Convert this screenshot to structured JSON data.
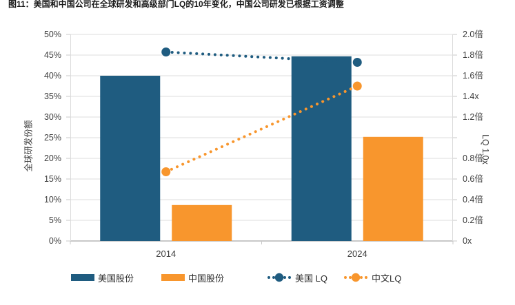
{
  "title": "图11：美国和中国公司在全球研发和高级部门LQ的10年变化，中国公司研发已根据工资调整",
  "colors": {
    "us": "#1f5c80",
    "cn": "#f8962d",
    "grid": "#dcdcdc",
    "axis": "#c8c8c8",
    "text": "#3d3d3d"
  },
  "chart_data": {
    "type": "combo-bar-line-dual-axis",
    "categories": [
      "2014",
      "2024"
    ],
    "series": [
      {
        "name": "美国股份",
        "type": "bar",
        "axis": "left",
        "values": [
          40,
          44.7
        ],
        "color_key": "us"
      },
      {
        "name": "中国股份",
        "type": "bar",
        "axis": "left",
        "values": [
          8.7,
          25.2
        ],
        "color_key": "cn"
      },
      {
        "name": "美国 LQ",
        "type": "line",
        "axis": "right",
        "values": [
          1.83,
          1.73
        ],
        "color_key": "us"
      },
      {
        "name": "中文LQ",
        "type": "line",
        "axis": "right",
        "values": [
          0.67,
          1.5
        ],
        "color_key": "cn"
      }
    ],
    "left_axis": {
      "label": "全球研发份额",
      "min": 0,
      "max": 50,
      "ticks_top_to_bottom": [
        "50%",
        "45%",
        "40%",
        "35%",
        "30%",
        "25%",
        "20%",
        "15%",
        "10%",
        "5%",
        "0%"
      ]
    },
    "right_axis": {
      "label": "LQ 1.0x",
      "min": 0,
      "max": 2.0,
      "ticks_top_to_bottom": [
        "2.0倍",
        "1.8倍",
        "1.6倍",
        "1.4x",
        "1.2倍",
        "",
        "0.8倍",
        "0.6倍",
        "0.4倍",
        "0.2倍",
        "0x"
      ]
    },
    "grid": true,
    "legend_position": "bottom"
  }
}
